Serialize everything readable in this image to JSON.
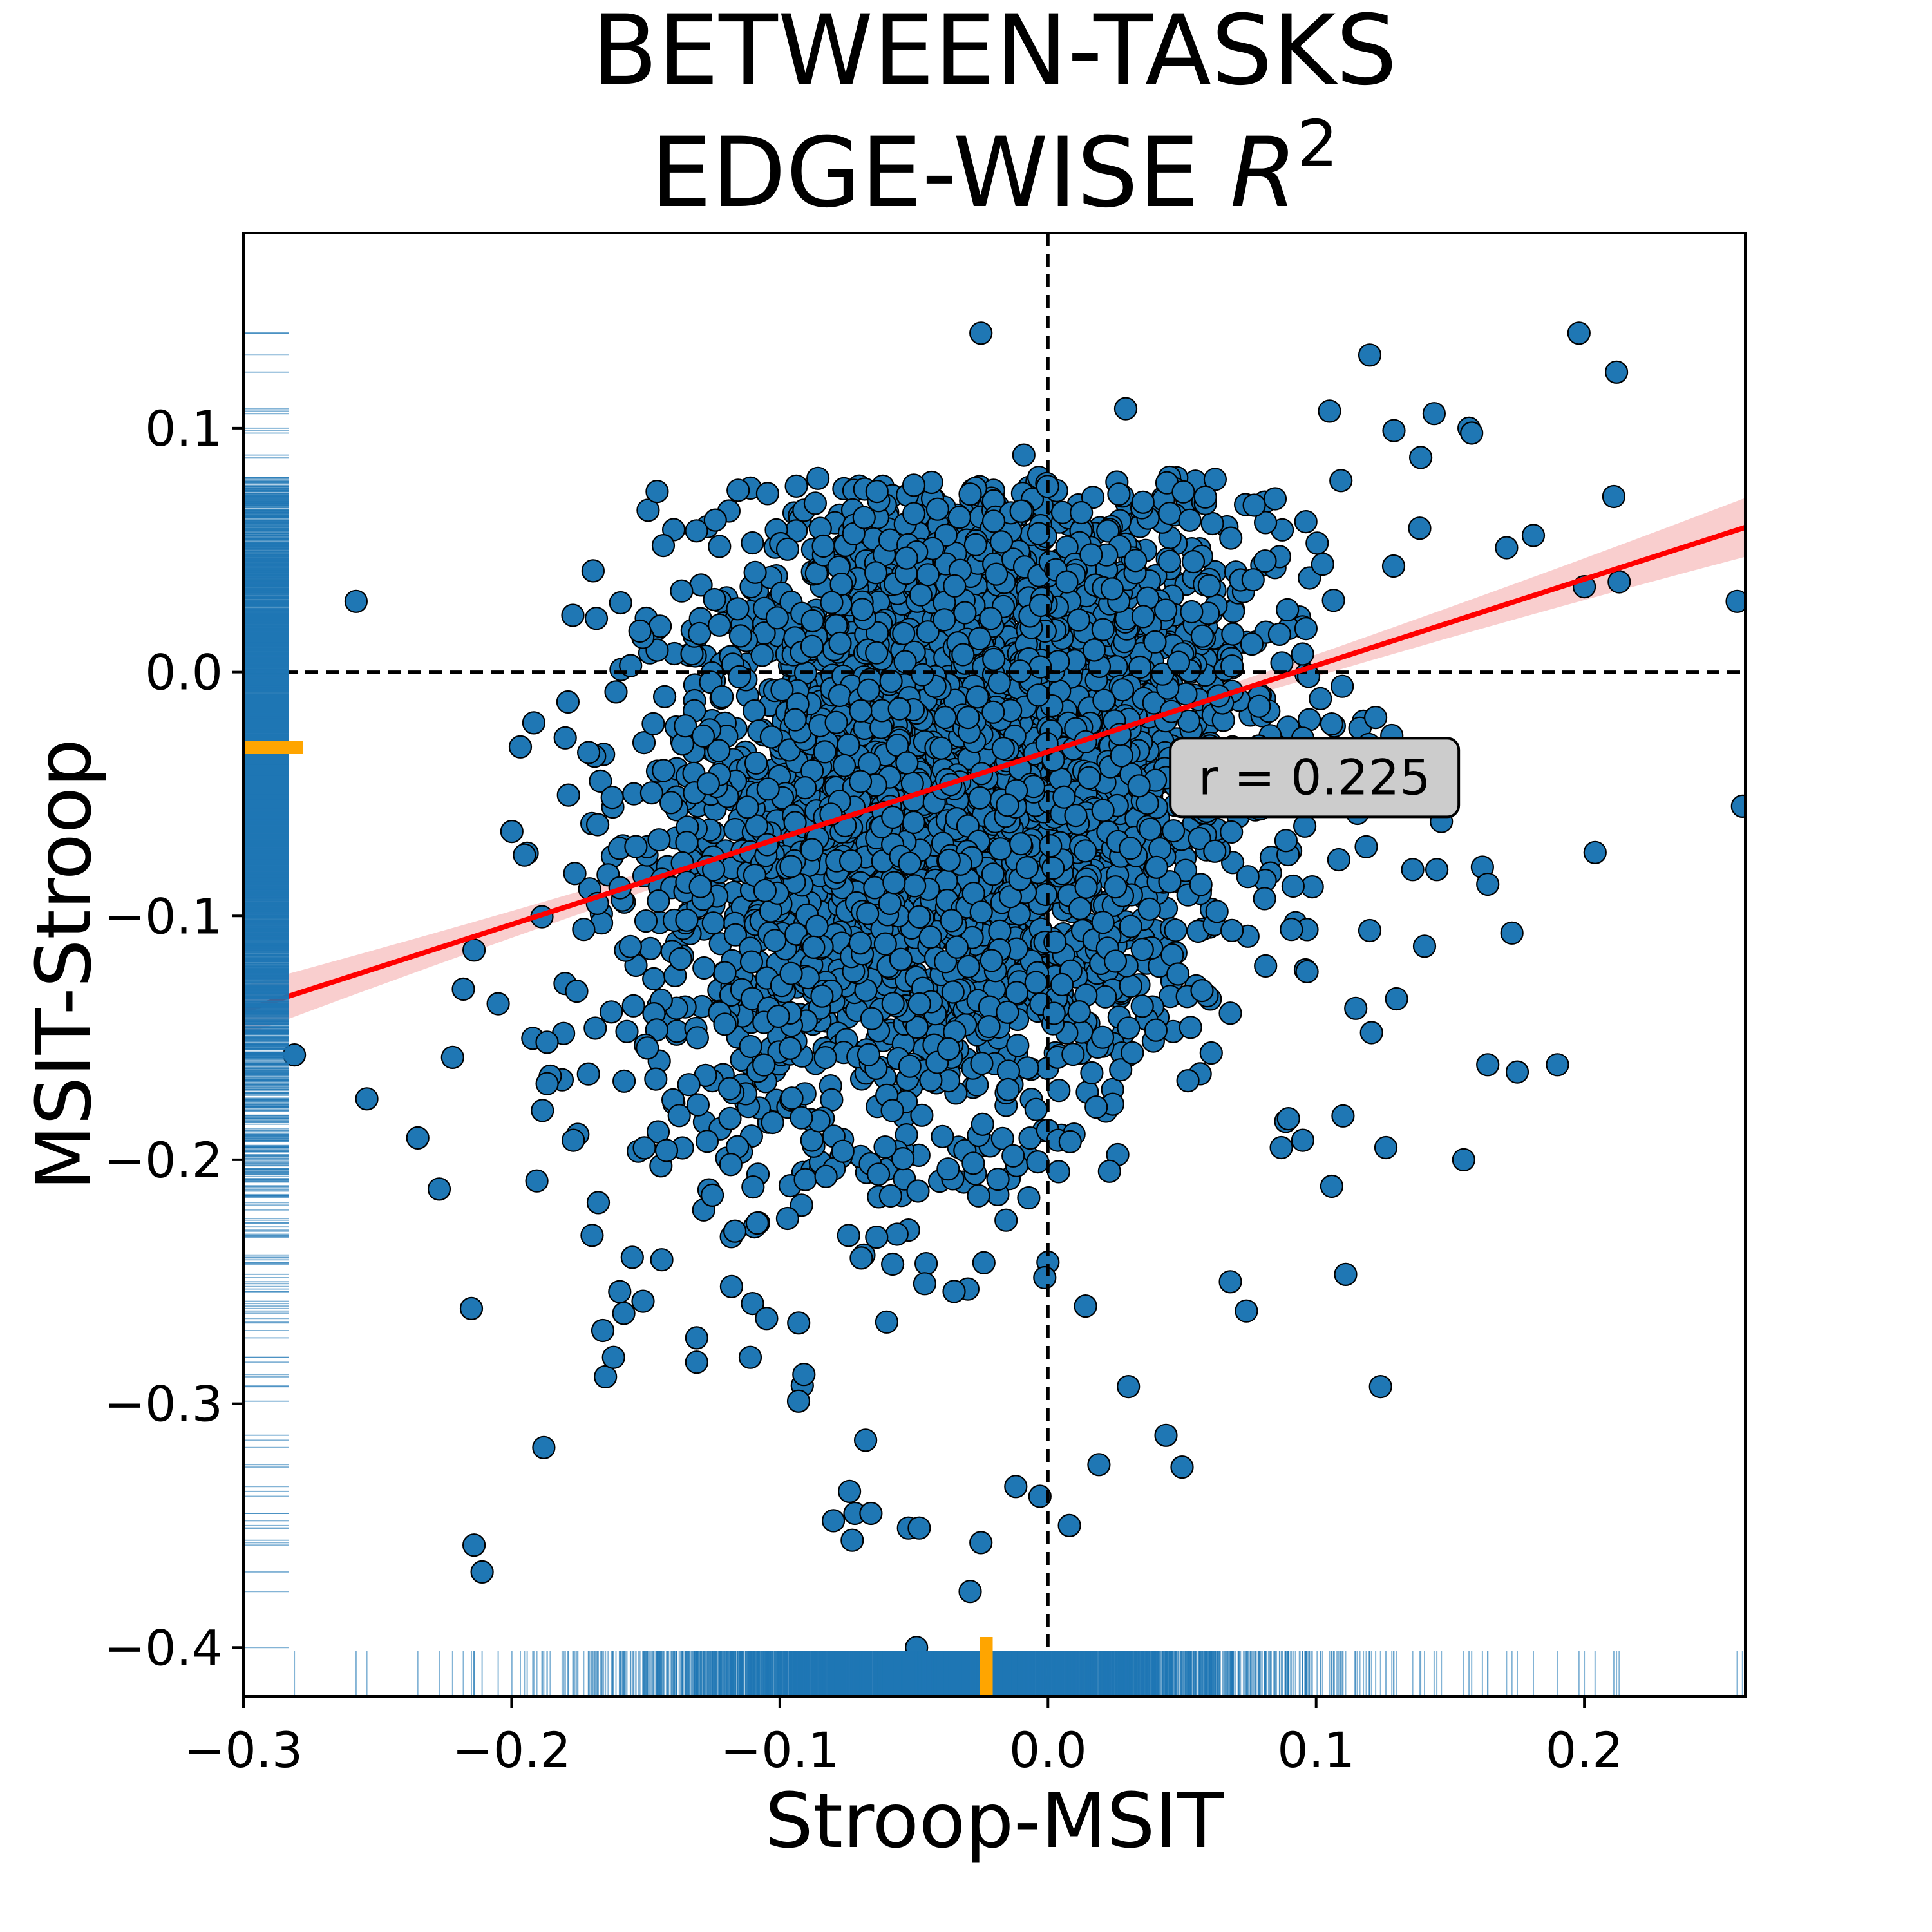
{
  "chart_data": {
    "type": "scatter",
    "title_line1": "BETWEEN-TASKS",
    "title_line2": "EDGE-WISE ",
    "title_symbol": "R",
    "title_superscript": "2",
    "xlabel": "Stroop-MSIT",
    "ylabel": "MSIT-Stroop",
    "xlim": [
      -0.3,
      0.26
    ],
    "ylim": [
      -0.42,
      0.18
    ],
    "xticks": [
      -0.3,
      -0.2,
      -0.1,
      0.0,
      0.1,
      0.2
    ],
    "xtick_labels": [
      "−0.3",
      "−0.2",
      "−0.1",
      "0.0",
      "0.1",
      "0.2"
    ],
    "yticks": [
      -0.4,
      -0.3,
      -0.2,
      -0.1,
      0.0,
      0.1
    ],
    "ytick_labels": [
      "−0.4",
      "−0.3",
      "−0.2",
      "−0.1",
      "0.0",
      "0.1"
    ],
    "grid": false,
    "point_color": "#1f77b4",
    "point_edge_color": "#000000",
    "regression_line_color": "#ff0000",
    "confidence_band_color": "#f4a6a6",
    "rug_color": "#1f77b4",
    "median_marker_color": "#ffa500",
    "reference_lines": {
      "x": 0.0,
      "y": 0.0,
      "style": "dashed"
    },
    "regression": {
      "slope": 0.354,
      "intercept": -0.0327
    },
    "annotation": {
      "text": "r = 0.225",
      "x": 0.048,
      "y": -0.043
    },
    "median_x": -0.023,
    "median_y": -0.031,
    "cloud": {
      "n": 4200,
      "x_mean": -0.035,
      "x_sd": 0.055,
      "y_mean": -0.045,
      "y_sd": 0.07,
      "r": 0.225
    },
    "outliers": [
      [
        -0.258,
        0.029
      ],
      [
        -0.281,
        -0.157
      ],
      [
        -0.254,
        -0.175
      ],
      [
        -0.235,
        -0.191
      ],
      [
        -0.227,
        -0.212
      ],
      [
        -0.215,
        -0.261
      ],
      [
        -0.214,
        -0.358
      ],
      [
        -0.211,
        -0.369
      ],
      [
        -0.222,
        -0.158
      ],
      [
        -0.218,
        -0.13
      ],
      [
        -0.214,
        -0.114
      ],
      [
        -0.205,
        -0.136
      ],
      [
        -0.188,
        -0.318
      ],
      [
        -0.18,
        -0.027
      ],
      [
        -0.177,
        -0.192
      ],
      [
        -0.17,
        -0.231
      ],
      [
        -0.166,
        -0.27
      ],
      [
        -0.165,
        -0.289
      ],
      [
        -0.162,
        -0.281
      ],
      [
        -0.155,
        -0.24
      ],
      [
        -0.151,
        -0.258
      ],
      [
        -0.144,
        -0.241
      ],
      [
        -0.131,
        -0.273
      ],
      [
        -0.131,
        -0.283
      ],
      [
        -0.118,
        -0.252
      ],
      [
        -0.111,
        -0.281
      ],
      [
        -0.091,
        -0.288
      ],
      [
        -0.093,
        -0.299
      ],
      [
        -0.08,
        -0.348
      ],
      [
        -0.072,
        -0.345
      ],
      [
        -0.074,
        -0.336
      ],
      [
        -0.073,
        -0.356
      ],
      [
        -0.068,
        -0.315
      ],
      [
        -0.066,
        -0.345
      ],
      [
        -0.052,
        -0.351
      ],
      [
        -0.048,
        -0.351
      ],
      [
        -0.049,
        -0.4
      ],
      [
        -0.025,
        -0.357
      ],
      [
        -0.029,
        -0.377
      ],
      [
        -0.012,
        -0.334
      ],
      [
        -0.003,
        -0.338
      ],
      [
        0.008,
        -0.35
      ],
      [
        0.019,
        -0.325
      ],
      [
        -0.025,
        0.139
      ],
      [
        0.029,
        0.108
      ],
      [
        0.198,
        0.139
      ],
      [
        0.212,
        0.123
      ],
      [
        0.12,
        0.13
      ],
      [
        0.105,
        0.107
      ],
      [
        0.144,
        0.106
      ],
      [
        0.157,
        0.1
      ],
      [
        0.158,
        0.098
      ],
      [
        0.129,
        0.099
      ],
      [
        0.139,
        0.088
      ],
      [
        0.211,
        0.072
      ],
      [
        0.181,
        0.056
      ],
      [
        0.171,
        0.051
      ],
      [
        0.2,
        0.035
      ],
      [
        0.213,
        0.037
      ],
      [
        0.257,
        0.029
      ],
      [
        0.259,
        -0.055
      ],
      [
        0.204,
        -0.074
      ],
      [
        0.173,
        -0.107
      ],
      [
        0.19,
        -0.161
      ],
      [
        0.175,
        -0.164
      ],
      [
        0.164,
        -0.161
      ],
      [
        0.155,
        -0.2
      ],
      [
        0.126,
        -0.195
      ],
      [
        0.111,
        -0.247
      ],
      [
        0.124,
        -0.293
      ],
      [
        0.162,
        -0.08
      ],
      [
        0.164,
        -0.087
      ],
      [
        0.145,
        -0.081
      ],
      [
        0.136,
        -0.081
      ],
      [
        0.12,
        -0.106
      ],
      [
        0.13,
        -0.134
      ],
      [
        0.11,
        -0.182
      ],
      [
        0.095,
        -0.192
      ],
      [
        0.087,
        -0.195
      ],
      [
        -0.05,
        0.065
      ],
      [
        -0.029,
        0.073
      ],
      [
        -0.01,
        0.066
      ],
      [
        -0.009,
        0.089
      ],
      [
        0.074,
        -0.262
      ],
      [
        0.068,
        -0.25
      ],
      [
        0.05,
        -0.326
      ],
      [
        0.044,
        -0.313
      ],
      [
        0.03,
        -0.293
      ],
      [
        0.014,
        -0.26
      ],
      [
        -0.035,
        -0.254
      ]
    ]
  }
}
